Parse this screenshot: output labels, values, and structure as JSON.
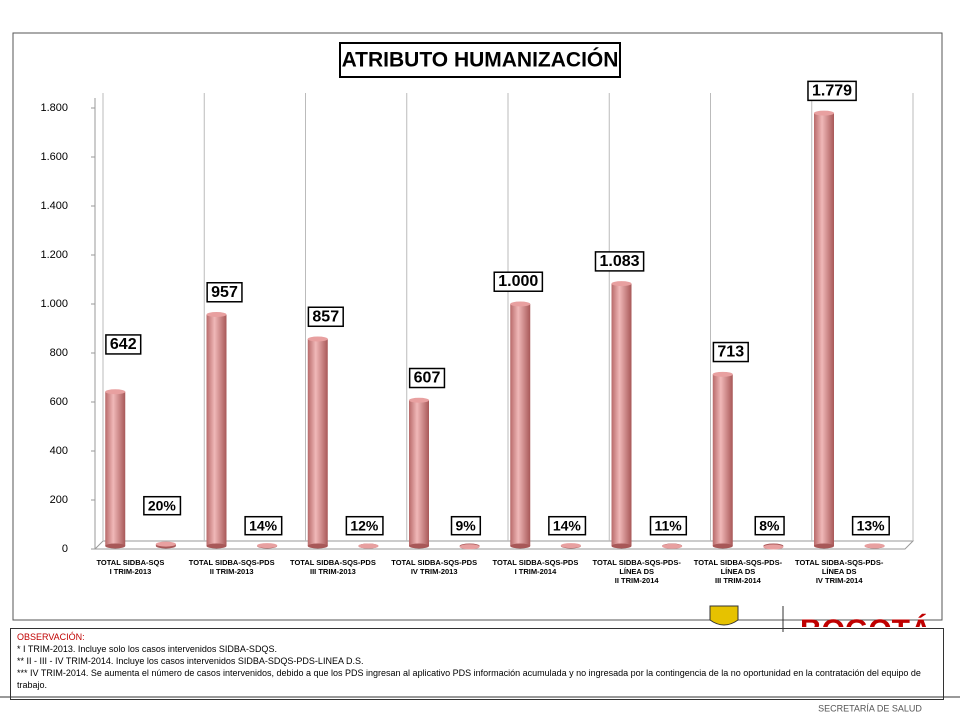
{
  "chart_data": {
    "type": "bar",
    "title": "ATRIBUTO HUMANIZACIÓN",
    "categories": [
      "TOTAL SIDBA-SQS\nI TRIM-2013",
      "TOTAL SIDBA-SQS-PDS\nII TRIM-2013",
      "TOTAL SIDBA-SQS-PDS\nIII TRIM-2013",
      "TOTAL SIDBA-SQS-PDS\nIV TRIM-2013",
      "TOTAL SIDBA-SQS-PDS\nI TRIM-2014",
      "TOTAL SIDBA-SQS-PDS-\nLÍNEA DS\nII TRIM-2014",
      "TOTAL SIDBA-SQS-PDS-\nLÍNEA DS\nIII TRIM-2014",
      "TOTAL SIDBA-SQS-PDS-\nLÍNEA DS\nIV TRIM-2014"
    ],
    "series": [
      {
        "color": "#d98f8f",
        "values": [
          642,
          957,
          857,
          607,
          1000,
          1083,
          713,
          1779
        ],
        "value_labels": [
          "642",
          "957",
          "857",
          "607",
          "1.000",
          "1.083",
          "713",
          "1.779"
        ]
      },
      {
        "color": "#d98f8f",
        "values": [
          20,
          14,
          12,
          9,
          14,
          11,
          8,
          13
        ],
        "value_labels": [
          "20%",
          "14%",
          "12%",
          "9%",
          "14%",
          "11%",
          "8%",
          "13%"
        ]
      }
    ],
    "ylim": [
      0,
      1800
    ],
    "yticks": [
      0,
      200,
      400,
      600,
      800,
      {
        "value": 1000,
        "label": "1.000"
      },
      {
        "value": 1200,
        "label": "1.200"
      },
      {
        "value": 1400,
        "label": "1.400"
      },
      {
        "value": 1600,
        "label": "1.600"
      },
      {
        "value": 1800,
        "label": "1.800"
      }
    ],
    "grid": false
  },
  "observation": {
    "heading": "OBSERVACIÓN:",
    "lines": [
      "* I TRIM-2013. Incluye solo los casos intervenidos SIDBA-SDQS.",
      "** II - III - IV TRIM-2014. Incluye los casos intervenidos SIDBA-SDQS-PDS-LINEA D.S.",
      "*** IV TRIM-2014. Se aumenta el número de casos intervenidos, debido a que los PDS ingresan al aplicativo PDS información acumulada y no ingresada por la contingencia de la no oportunidad en la contratación del equipo de trabajo."
    ]
  },
  "footer": {
    "logo": "BOGOTÁ",
    "org": "SECRETARÍA DE SALUD"
  }
}
